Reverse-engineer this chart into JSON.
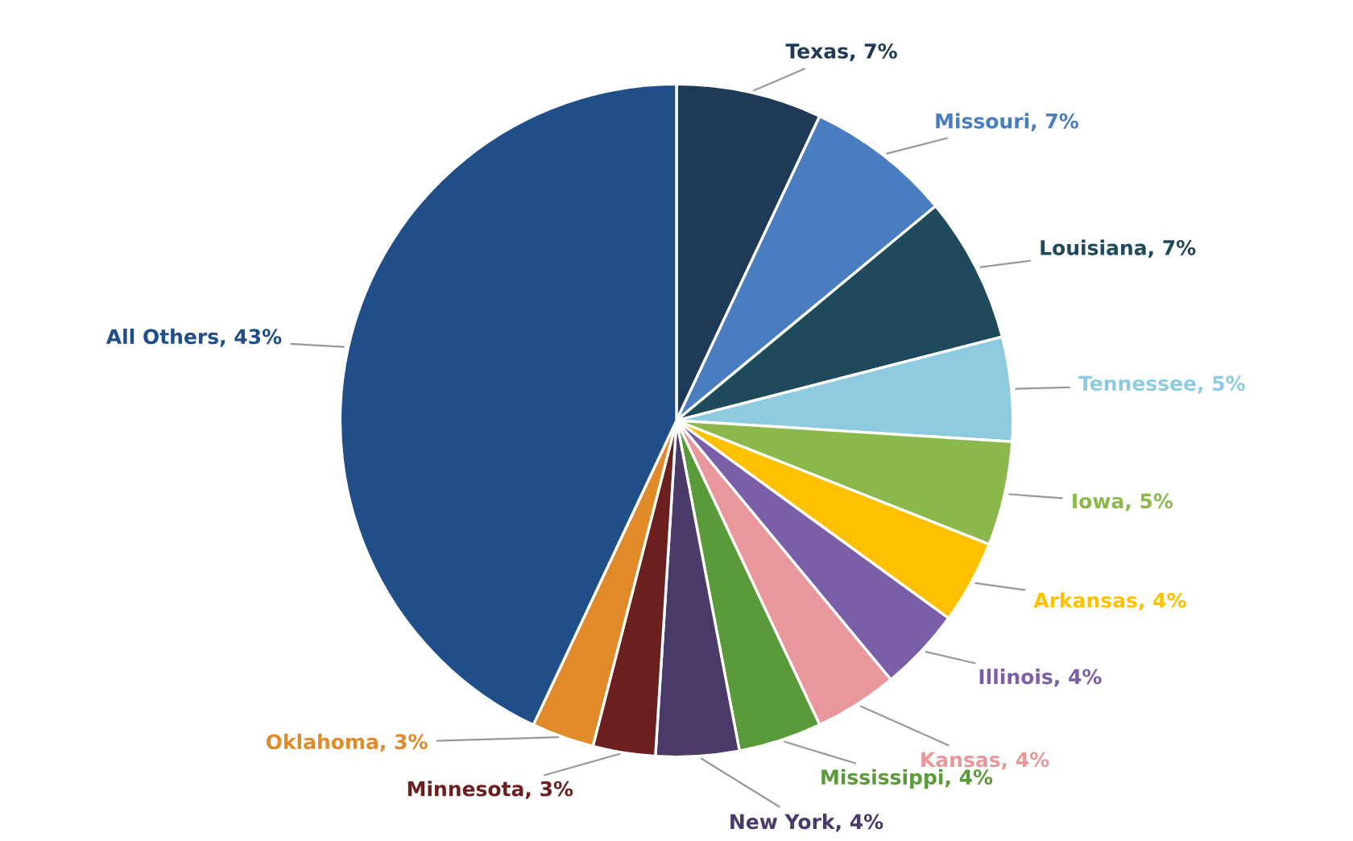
{
  "chart_data": {
    "type": "pie",
    "categories": [
      "Texas",
      "Missouri",
      "Louisiana",
      "Tennessee",
      "Iowa",
      "Arkansas",
      "Illinois",
      "Kansas",
      "Mississippi",
      "New York",
      "Minnesota",
      "Oklahoma",
      "All Others"
    ],
    "values": [
      7,
      7,
      7,
      5,
      5,
      4,
      4,
      4,
      4,
      4,
      3,
      3,
      43
    ],
    "value_labels": [
      "7%",
      "7%",
      "7%",
      "5%",
      "5%",
      "4%",
      "4%",
      "4%",
      "4%",
      "4%",
      "3%",
      "3%",
      "43%"
    ],
    "colors": [
      "#1f3a56",
      "#4a7cc0",
      "#1e4a5c",
      "#8ecae0",
      "#8bb84a",
      "#ffc000",
      "#7a5ea8",
      "#e8979a",
      "#5a9a3a",
      "#4a3a6a",
      "#6b1f1f",
      "#e08a2a",
      "#1f4e88"
    ]
  }
}
